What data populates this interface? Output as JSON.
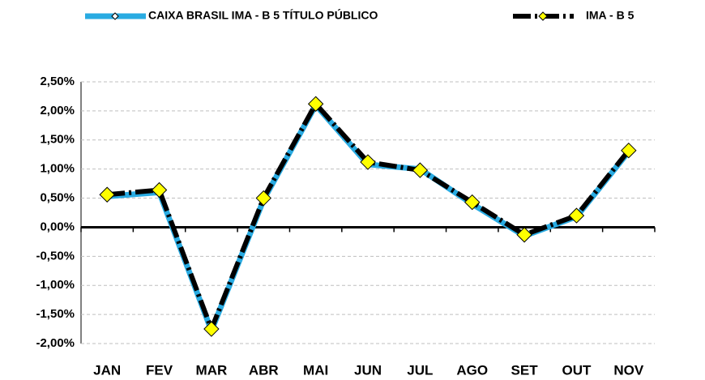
{
  "chart_data": {
    "type": "line",
    "categories": [
      "JAN",
      "FEV",
      "MAR",
      "ABR",
      "MAI",
      "JUN",
      "JUL",
      "AGO",
      "SET",
      "OUT",
      "NOV"
    ],
    "series": [
      {
        "name": "CAIXA BRASIL IMA - B 5 TÍTULO PÚBLICO",
        "color": "#29abe2",
        "marker_fill": "#ffffff",
        "values": [
          0.53,
          0.6,
          -1.78,
          0.47,
          2.1,
          1.08,
          1.0,
          0.4,
          -0.15,
          0.18,
          1.3
        ]
      },
      {
        "name": "IMA - B 5",
        "color": "#000000",
        "marker_fill": "#ffff00",
        "values": [
          0.56,
          0.64,
          -1.75,
          0.5,
          2.12,
          1.12,
          0.98,
          0.43,
          -0.13,
          0.2,
          1.32
        ]
      }
    ],
    "ylim": [
      -2.0,
      2.5
    ],
    "yticks": [
      {
        "value": -2.0,
        "label": "-2,00%"
      },
      {
        "value": -1.5,
        "label": "-1,50%"
      },
      {
        "value": -1.0,
        "label": "-1,00%"
      },
      {
        "value": -0.5,
        "label": "-0,50%"
      },
      {
        "value": 0,
        "label": "0,00%"
      },
      {
        "value": 0.5,
        "label": "0,50%"
      },
      {
        "value": 1.0,
        "label": "1,00%"
      },
      {
        "value": 1.5,
        "label": "1,50%"
      },
      {
        "value": 2.0,
        "label": "2,00%"
      },
      {
        "value": 2.5,
        "label": "2,50%"
      }
    ],
    "grid": true,
    "legend": "top"
  }
}
